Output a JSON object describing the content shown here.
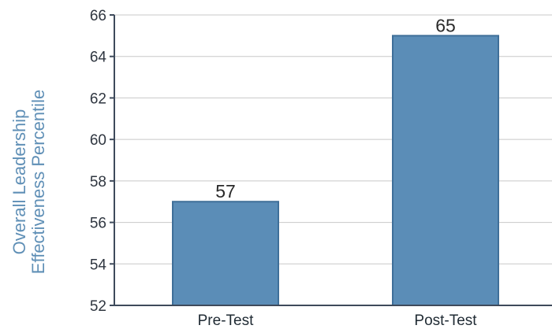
{
  "chart_data": {
    "type": "bar",
    "categories": [
      "Pre-Test",
      "Post-Test"
    ],
    "values": [
      57,
      65
    ],
    "title": "",
    "xlabel": "",
    "ylabel_lines": [
      "Overall Leadership",
      "Effectiveness Percentile"
    ],
    "ylim": [
      52,
      66
    ],
    "yticks": [
      52,
      54,
      56,
      58,
      60,
      62,
      64,
      66
    ],
    "ytick_labels": [
      "52",
      "54",
      "56",
      "58",
      "60",
      "62",
      "64",
      "66"
    ],
    "data_labels": [
      "57",
      "65"
    ],
    "grid": true,
    "legend": "none",
    "bar_color": "#5b8db7",
    "bar_edge_color": "#3f6f99",
    "grid_color": "#c8c8c8",
    "axis_color": "#3e4a5b"
  }
}
